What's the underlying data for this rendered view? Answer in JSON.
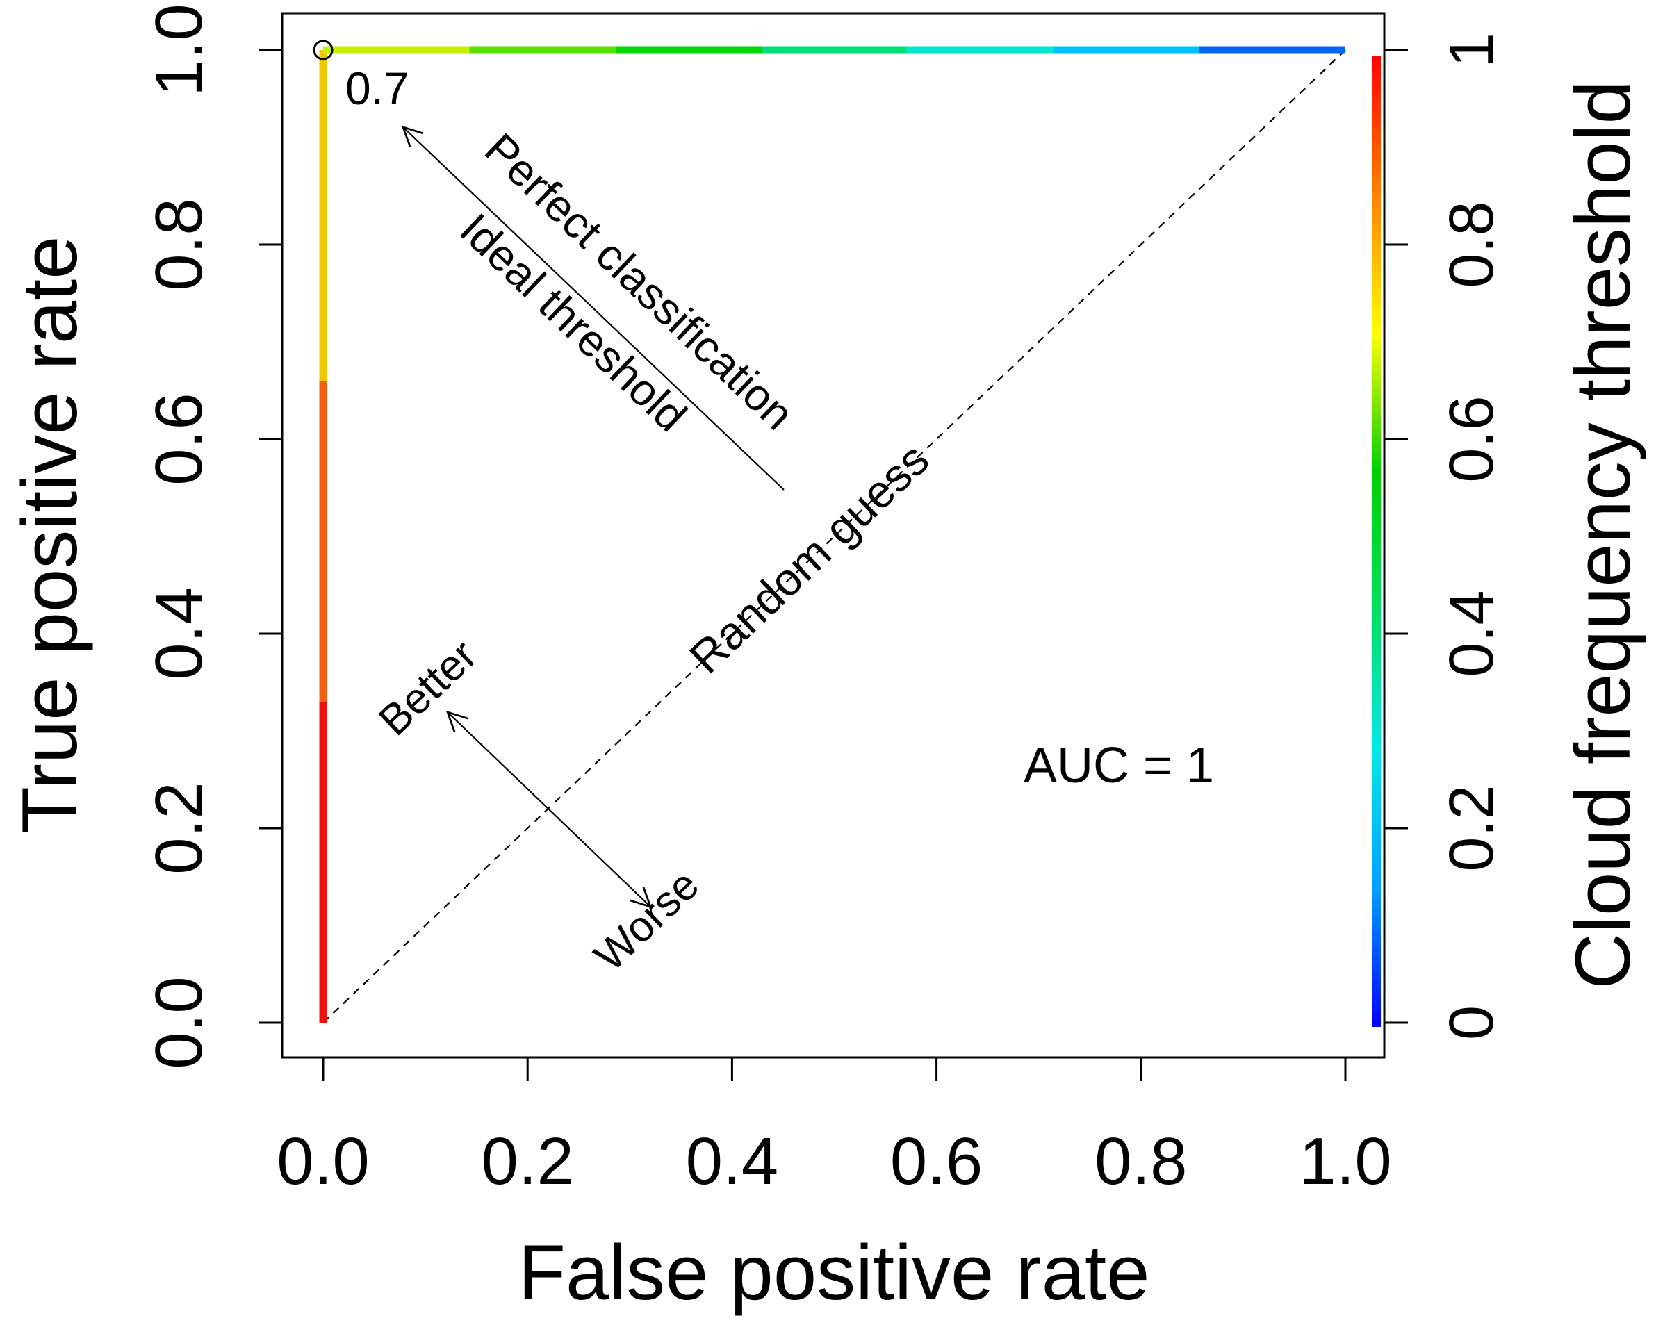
{
  "chart_data": {
    "type": "line",
    "title": "",
    "xlabel": "False positive rate",
    "ylabel": "True positive rate",
    "y2label": "Cloud frequency threshold",
    "xlim": [
      0,
      1
    ],
    "ylim": [
      0,
      1
    ],
    "x_ticks": [
      "0.0",
      "0.2",
      "0.4",
      "0.6",
      "0.8",
      "1.0"
    ],
    "y_ticks": [
      "0.0",
      "0.2",
      "0.4",
      "0.6",
      "0.8",
      "1.0"
    ],
    "y2_ticks": [
      "0",
      "0.2",
      "0.4",
      "0.6",
      "0.8",
      "1"
    ],
    "grid": false,
    "series": [
      {
        "name": "ROC curve",
        "segments": [
          {
            "x": [
              0.0,
              0.0
            ],
            "y": [
              0.0,
              0.33
            ],
            "color": "#ee1111"
          },
          {
            "x": [
              0.0,
              0.0
            ],
            "y": [
              0.33,
              0.66
            ],
            "color": "#f06010"
          },
          {
            "x": [
              0.0,
              0.0
            ],
            "y": [
              0.66,
              1.0
            ],
            "color": "#f0c800"
          },
          {
            "x": [
              0.0,
              0.143
            ],
            "y": [
              1.0,
              1.0
            ],
            "color": "#c8f000"
          },
          {
            "x": [
              0.143,
              0.286
            ],
            "y": [
              1.0,
              1.0
            ],
            "color": "#55e000"
          },
          {
            "x": [
              0.286,
              0.429
            ],
            "y": [
              1.0,
              1.0
            ],
            "color": "#00d800"
          },
          {
            "x": [
              0.429,
              0.571
            ],
            "y": [
              1.0,
              1.0
            ],
            "color": "#00e07a"
          },
          {
            "x": [
              0.571,
              0.714
            ],
            "y": [
              1.0,
              1.0
            ],
            "color": "#00e8d0"
          },
          {
            "x": [
              0.714,
              0.857
            ],
            "y": [
              1.0,
              1.0
            ],
            "color": "#00c0ff"
          },
          {
            "x": [
              0.857,
              1.0
            ],
            "y": [
              1.0,
              1.0
            ],
            "color": "#0064f0"
          }
        ]
      },
      {
        "name": "Random guess",
        "x": [
          0,
          1
        ],
        "y": [
          0,
          1
        ],
        "style": "dashed"
      }
    ],
    "threshold_point": {
      "x": 0.0,
      "y": 1.0,
      "label": "0.7"
    },
    "colorbar": {
      "range": [
        0,
        1
      ],
      "colors": [
        "#0000ff",
        "#00a0ff",
        "#00e8e8",
        "#00e060",
        "#00d000",
        "#ffff00",
        "#ff8000",
        "#ff0000"
      ]
    },
    "annotations": {
      "perfect": "Perfect classification",
      "ideal": "Ideal threshold",
      "random": "Random guess",
      "better": "Better",
      "worse": "Worse",
      "auc": "AUC = 1"
    }
  }
}
